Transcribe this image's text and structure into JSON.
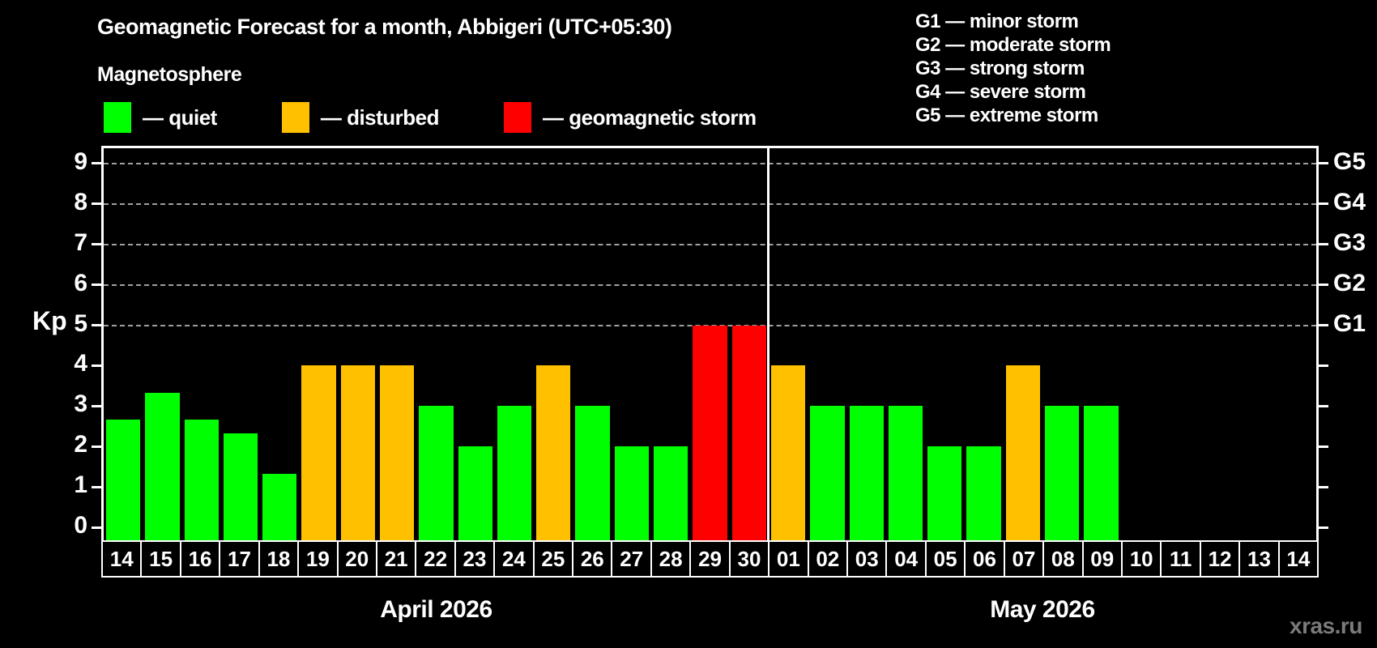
{
  "title": "Geomagnetic Forecast for a month, Abbigeri (UTC+05:30)",
  "subtitle": "Magnetosphere",
  "legend": {
    "items": [
      {
        "name": "quiet",
        "label": "— quiet",
        "color": "#00ff00"
      },
      {
        "name": "disturbed",
        "label": "— disturbed",
        "color": "#ffc000"
      },
      {
        "name": "storm",
        "label": "— geomagnetic storm",
        "color": "#ff0000"
      }
    ]
  },
  "g_scale_legend": {
    "items": [
      "G1 — minor storm",
      "G2 — moderate storm",
      "G3 — strong storm",
      "G4 — severe storm",
      "G5 — extreme storm"
    ]
  },
  "watermark": "xras.ru",
  "chart_data": {
    "type": "bar",
    "title": "Geomagnetic Forecast for a month, Abbigeri (UTC+05:30)",
    "ylabel": "Kp",
    "ylim": [
      0,
      9
    ],
    "yticks": [
      0,
      1,
      2,
      3,
      4,
      5,
      6,
      7,
      8,
      9
    ],
    "grid": "horizontal dashed lines at Kp 5-9",
    "gridlines_at_kp": [
      5,
      6,
      7,
      8,
      9
    ],
    "right_axis": [
      {
        "kp": 5,
        "label": "G1"
      },
      {
        "kp": 6,
        "label": "G2"
      },
      {
        "kp": 7,
        "label": "G3"
      },
      {
        "kp": 8,
        "label": "G4"
      },
      {
        "kp": 9,
        "label": "G5"
      }
    ],
    "legend_position": "top-left",
    "months": [
      {
        "label": "April 2026",
        "start_index": 0,
        "num_days": 17
      },
      {
        "label": "May 2026",
        "start_index": 17,
        "num_days": 14
      }
    ],
    "categories": [
      "14",
      "15",
      "16",
      "17",
      "18",
      "19",
      "20",
      "21",
      "22",
      "23",
      "24",
      "25",
      "26",
      "27",
      "28",
      "29",
      "30",
      "01",
      "02",
      "03",
      "04",
      "05",
      "06",
      "07",
      "08",
      "09",
      "10",
      "11",
      "12",
      "13",
      "14"
    ],
    "values": [
      2.67,
      3.33,
      2.67,
      2.33,
      1.33,
      4,
      4,
      4,
      3,
      2,
      3,
      4,
      3,
      2,
      2,
      5,
      5,
      4,
      3,
      3,
      3,
      2,
      2,
      4,
      3,
      3,
      null,
      null,
      null,
      null,
      null
    ],
    "statuses": [
      "quiet",
      "quiet",
      "quiet",
      "quiet",
      "quiet",
      "disturbed",
      "disturbed",
      "disturbed",
      "quiet",
      "quiet",
      "quiet",
      "disturbed",
      "quiet",
      "quiet",
      "quiet",
      "storm",
      "storm",
      "disturbed",
      "quiet",
      "quiet",
      "quiet",
      "quiet",
      "quiet",
      "disturbed",
      "quiet",
      "quiet",
      null,
      null,
      null,
      null,
      null
    ],
    "status_colors": {
      "quiet": "#00ff00",
      "disturbed": "#ffc000",
      "storm": "#ff0000"
    }
  }
}
